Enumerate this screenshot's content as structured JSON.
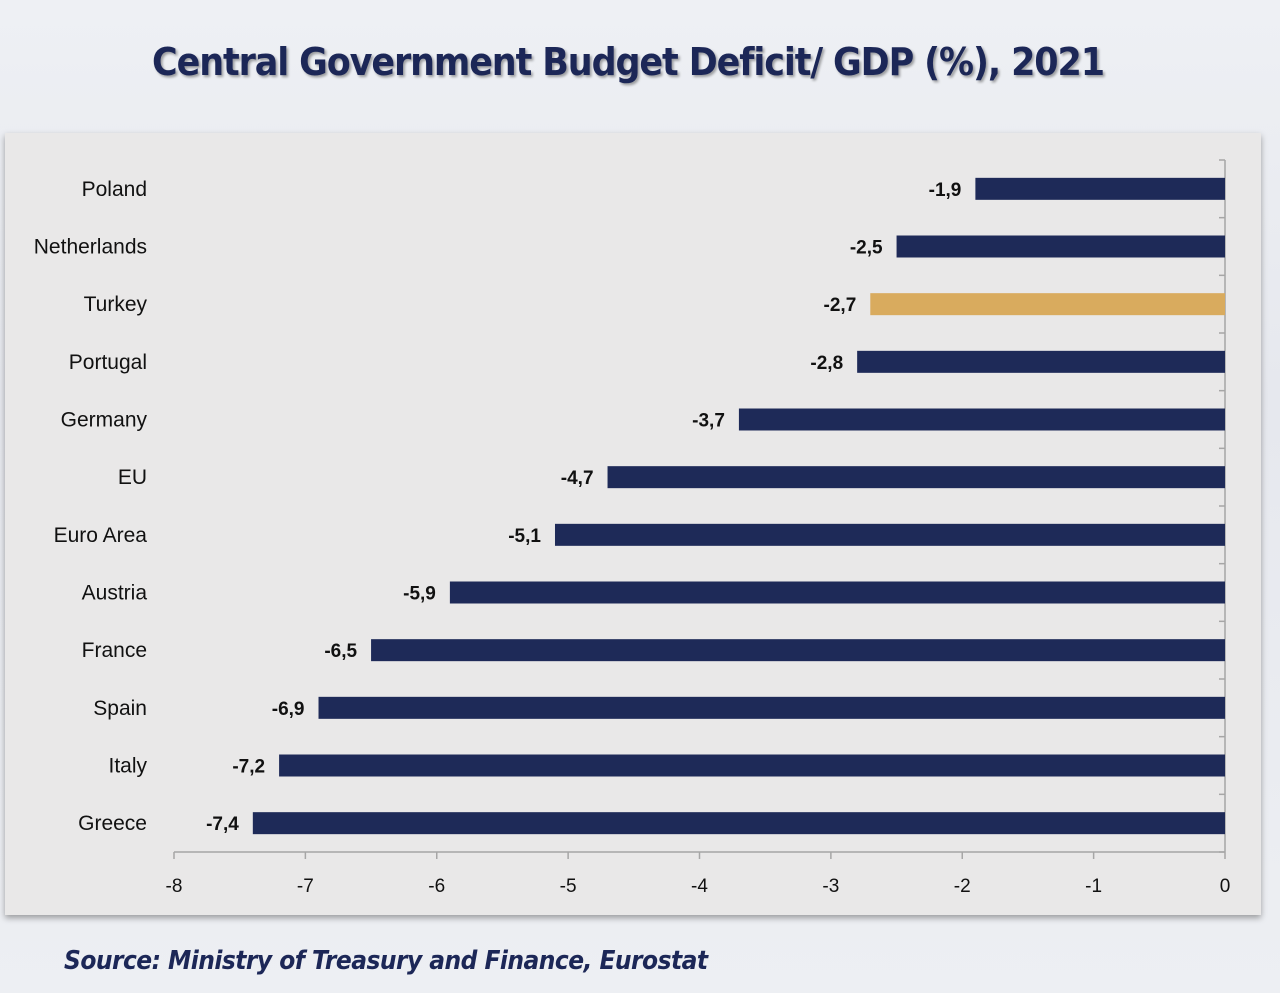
{
  "title": "Central Government Budget Deficit/ GDP (%), 2021",
  "source": "Source: Ministry of Treasury and Finance, Eurostat",
  "colors": {
    "bar": "#1e2a58",
    "highlight": "#d9ab5e",
    "label": "#111111",
    "axis": "#a6a6a6",
    "title": "#1c2757"
  },
  "chart_data": {
    "type": "bar",
    "orientation": "horizontal",
    "title": "Central Government Budget Deficit/ GDP (%), 2021",
    "xlabel": "",
    "ylabel": "",
    "xlim": [
      -8,
      0
    ],
    "x_ticks": [
      -8,
      -7,
      -6,
      -5,
      -4,
      -3,
      -2,
      -1,
      0
    ],
    "x_tick_labels": [
      "-8",
      "-7",
      "-6",
      "-5",
      "-4",
      "-3",
      "-2",
      "-1",
      "0"
    ],
    "grid": false,
    "legend": "none",
    "categories": [
      "Poland",
      "Netherlands",
      "Turkey",
      "Portugal",
      "Germany",
      "EU",
      "Euro Area",
      "Austria",
      "France",
      "Spain",
      "Italy",
      "Greece"
    ],
    "values": [
      -1.9,
      -2.5,
      -2.7,
      -2.8,
      -3.7,
      -4.7,
      -5.1,
      -5.9,
      -6.5,
      -6.9,
      -7.2,
      -7.4
    ],
    "data_labels": [
      "-1,9",
      "-2,5",
      "-2,7",
      "-2,8",
      "-3,7",
      "-4,7",
      "-5,1",
      "-5,9",
      "-6,5",
      "-6,9",
      "-7,2",
      "-7,4"
    ],
    "highlighted": [
      "Turkey"
    ]
  }
}
